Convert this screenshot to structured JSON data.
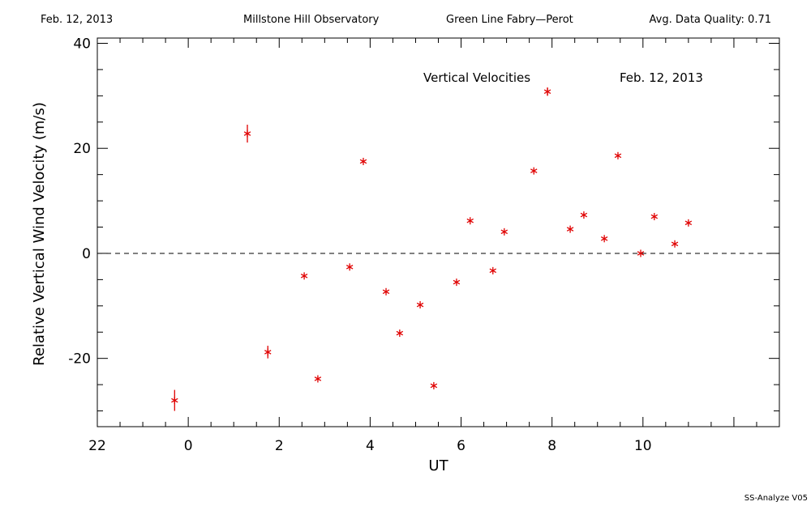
{
  "header": {
    "date": "Feb. 12, 2013",
    "observatory": "Millstone Hill Observatory",
    "instrument": "Green Line Fabry—Perot",
    "quality": "Avg. Data Quality: 0.71"
  },
  "footer": {
    "version": "SS-Analyze V05"
  },
  "colors": {
    "marker": "#e00000",
    "axis": "#000000"
  },
  "chart_data": {
    "type": "scatter",
    "xlabel": "UT",
    "ylabel": "Relative Vertical Wind Velocity (m/s)",
    "xlim": [
      -2,
      13
    ],
    "ylim": [
      -33,
      41
    ],
    "x_ticks": [
      22,
      0,
      2,
      4,
      6,
      8,
      10
    ],
    "y_ticks": [
      -20,
      0,
      20,
      40
    ],
    "annotations": [
      "Vertical Velocities",
      "Feb. 12, 2013"
    ],
    "zero_line": "dashed",
    "series": [
      {
        "marker": "asterisk",
        "points": [
          {
            "x": -0.3,
            "y": -28.0,
            "err": 2.0
          },
          {
            "x": 1.3,
            "y": 22.8,
            "err": 1.7
          },
          {
            "x": 1.75,
            "y": -18.8,
            "err": 1.2
          },
          {
            "x": 2.55,
            "y": -4.3,
            "err": 0
          },
          {
            "x": 2.85,
            "y": -23.9,
            "err": 0
          },
          {
            "x": 3.55,
            "y": -2.6,
            "err": 0
          },
          {
            "x": 3.85,
            "y": 17.5,
            "err": 0
          },
          {
            "x": 4.35,
            "y": -7.3,
            "err": 0
          },
          {
            "x": 4.65,
            "y": -15.2,
            "err": 0
          },
          {
            "x": 5.1,
            "y": -9.8,
            "err": 0
          },
          {
            "x": 5.4,
            "y": -25.2,
            "err": 0
          },
          {
            "x": 5.9,
            "y": -5.5,
            "err": 0
          },
          {
            "x": 6.2,
            "y": 6.2,
            "err": 0
          },
          {
            "x": 6.7,
            "y": -3.3,
            "err": 0
          },
          {
            "x": 6.95,
            "y": 4.1,
            "err": 0
          },
          {
            "x": 7.6,
            "y": 15.7,
            "err": 0
          },
          {
            "x": 7.9,
            "y": 30.8,
            "err": 0.8
          },
          {
            "x": 8.4,
            "y": 4.6,
            "err": 0
          },
          {
            "x": 8.7,
            "y": 7.3,
            "err": 0
          },
          {
            "x": 9.15,
            "y": 2.8,
            "err": 0
          },
          {
            "x": 9.45,
            "y": 18.6,
            "err": 0
          },
          {
            "x": 9.95,
            "y": 0.0,
            "err": 0
          },
          {
            "x": 10.25,
            "y": 7.0,
            "err": 0
          },
          {
            "x": 10.7,
            "y": 1.8,
            "err": 0
          },
          {
            "x": 11.0,
            "y": 5.8,
            "err": 0
          }
        ]
      }
    ]
  }
}
